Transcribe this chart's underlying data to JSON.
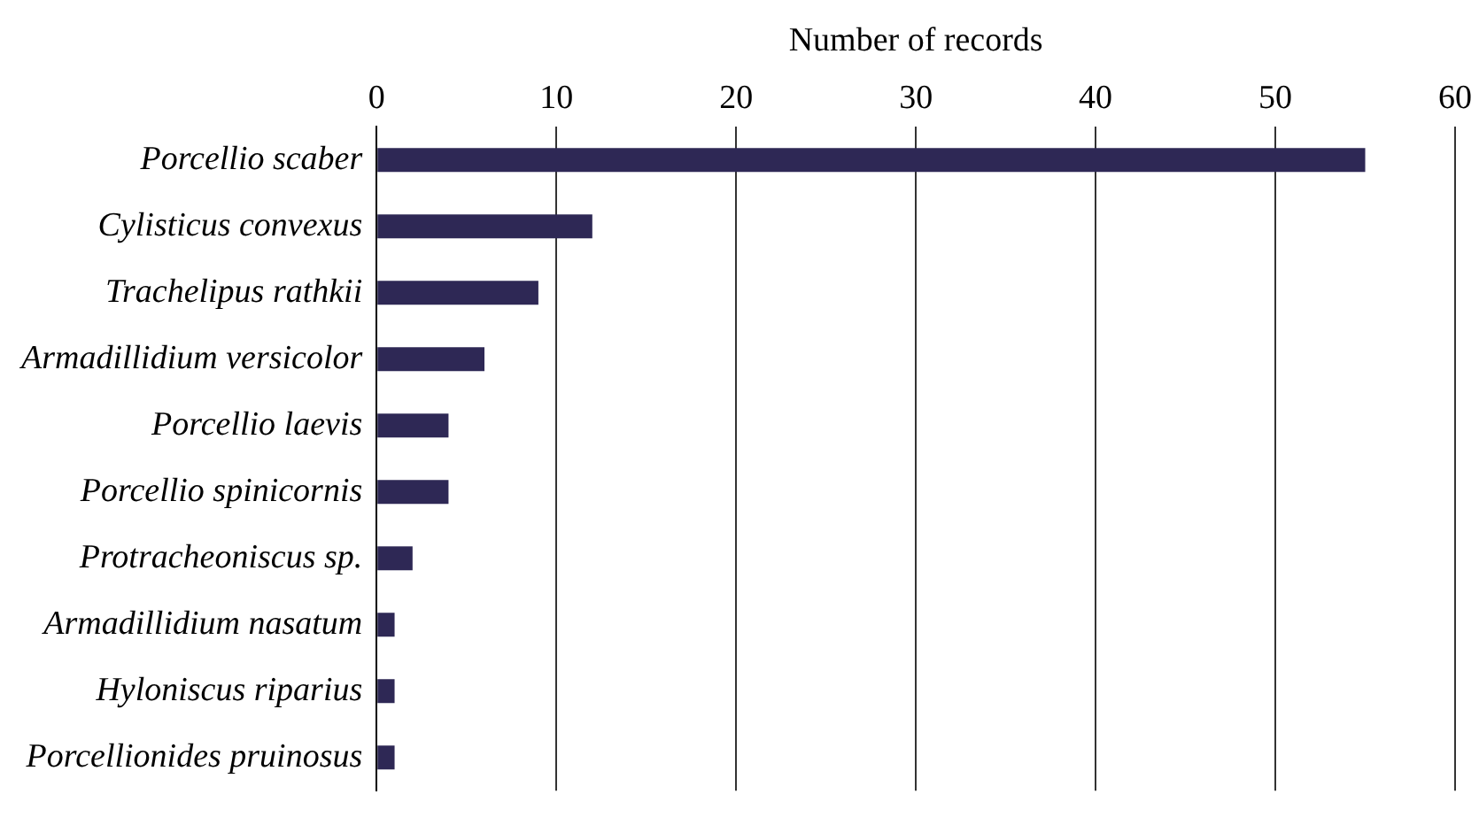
{
  "chart_data": {
    "type": "bar",
    "orientation": "horizontal",
    "xlabel": "Number of records",
    "categories": [
      "Porcellio scaber",
      "Cylisticus convexus",
      "Trachelipus rathkii",
      "Armadillidium versicolor",
      "Porcellio laevis",
      "Porcellio spinicornis",
      "Protracheoniscus sp.",
      "Armadillidium nasatum",
      "Hyloniscus riparius",
      "Porcellionides pruinosus"
    ],
    "values": [
      55,
      12,
      9,
      6,
      4,
      4,
      2,
      1,
      1,
      1
    ],
    "color": "#2e2855",
    "xlim": [
      0,
      60
    ],
    "xticks": [
      0,
      10,
      20,
      30,
      40,
      50,
      60
    ],
    "grid": "x",
    "legend": false
  }
}
